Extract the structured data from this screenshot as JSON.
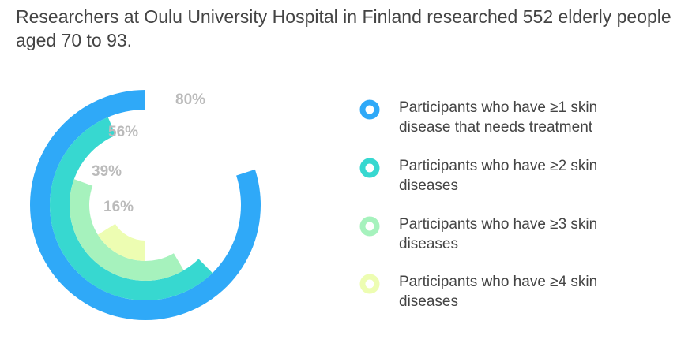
{
  "chart_data": {
    "type": "radial_bar",
    "title": "Researchers at Oulu University Hospital in Finland researched 552 elderly people aged 70 to 93.",
    "categories": [
      "Participants who have ≥1 skin disease that needs treatment",
      "Participants who have ≥2 skin diseases",
      "Participants who have ≥3 skin diseases",
      "Participants who have ≥4 skin diseases"
    ],
    "values": [
      80,
      56,
      39,
      16
    ],
    "value_labels": [
      "80%",
      "56%",
      "39%",
      "16%"
    ],
    "colors": [
      "#2fa9f8",
      "#37d8d0",
      "#a6f2bd",
      "#edfdb2"
    ]
  }
}
